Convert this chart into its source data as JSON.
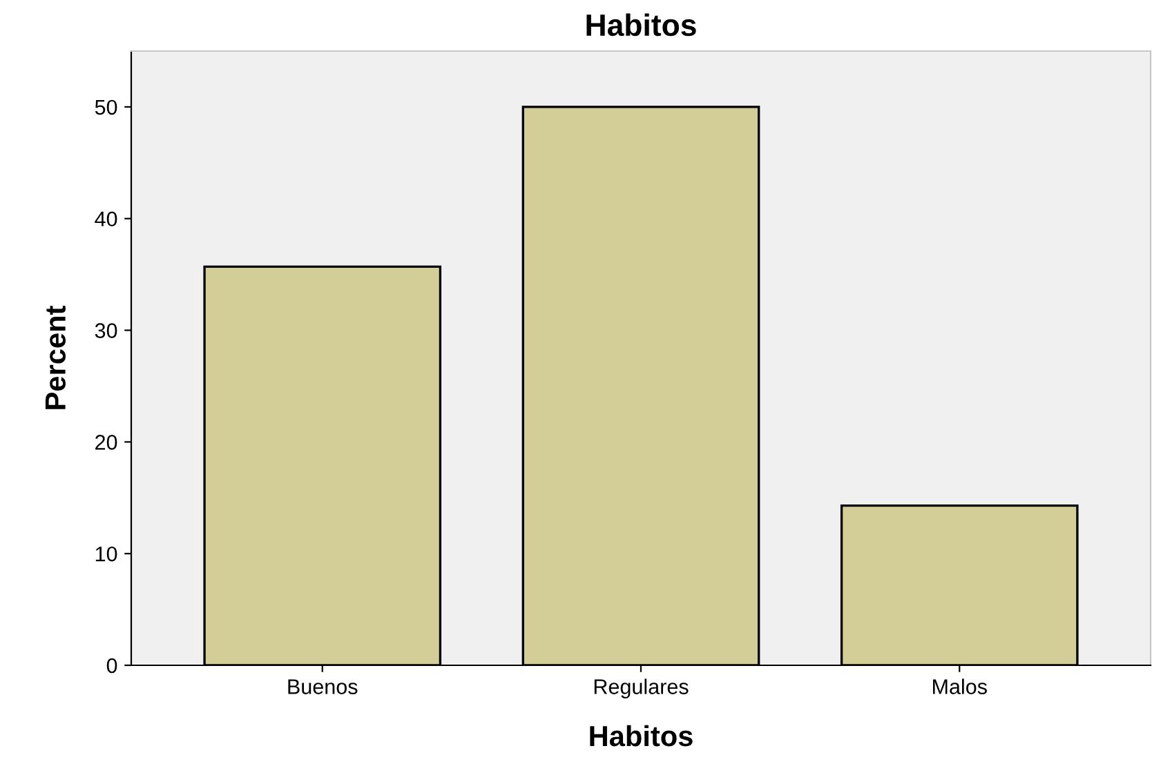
{
  "chart_data": {
    "type": "bar",
    "title": "Habitos",
    "xlabel": "Habitos",
    "ylabel": "Percent",
    "categories": [
      "Buenos",
      "Regulares",
      "Malos"
    ],
    "values": [
      35.7,
      50.0,
      14.3
    ],
    "color": "#d3ce97",
    "ylim": [
      0,
      55
    ],
    "yticks": [
      0,
      10,
      20,
      30,
      40,
      50
    ],
    "grid": false
  }
}
